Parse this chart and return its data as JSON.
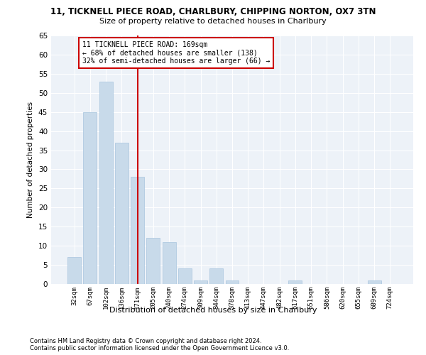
{
  "title1": "11, TICKNELL PIECE ROAD, CHARLBURY, CHIPPING NORTON, OX7 3TN",
  "title2": "Size of property relative to detached houses in Charlbury",
  "xlabel": "Distribution of detached houses by size in Charlbury",
  "ylabel": "Number of detached properties",
  "bar_labels": [
    "32sqm",
    "67sqm",
    "102sqm",
    "136sqm",
    "171sqm",
    "205sqm",
    "240sqm",
    "274sqm",
    "309sqm",
    "344sqm",
    "378sqm",
    "413sqm",
    "447sqm",
    "482sqm",
    "517sqm",
    "551sqm",
    "586sqm",
    "620sqm",
    "655sqm",
    "689sqm",
    "724sqm"
  ],
  "bar_values": [
    7,
    45,
    53,
    37,
    28,
    12,
    11,
    4,
    1,
    4,
    1,
    0,
    0,
    0,
    1,
    0,
    0,
    0,
    0,
    1,
    0
  ],
  "bar_color": "#c8daea",
  "bar_edge_color": "#a8c4de",
  "vline_color": "#cc0000",
  "vline_pos": 4.0,
  "annotation_line1": "11 TICKNELL PIECE ROAD: 169sqm",
  "annotation_line2": "← 68% of detached houses are smaller (138)",
  "annotation_line3": "32% of semi-detached houses are larger (66) →",
  "annotation_box_color": "#ffffff",
  "annotation_box_edge": "#cc0000",
  "ylim": [
    0,
    65
  ],
  "yticks": [
    0,
    5,
    10,
    15,
    20,
    25,
    30,
    35,
    40,
    45,
    50,
    55,
    60,
    65
  ],
  "bg_color": "#edf2f8",
  "footer1": "Contains HM Land Registry data © Crown copyright and database right 2024.",
  "footer2": "Contains public sector information licensed under the Open Government Licence v3.0."
}
